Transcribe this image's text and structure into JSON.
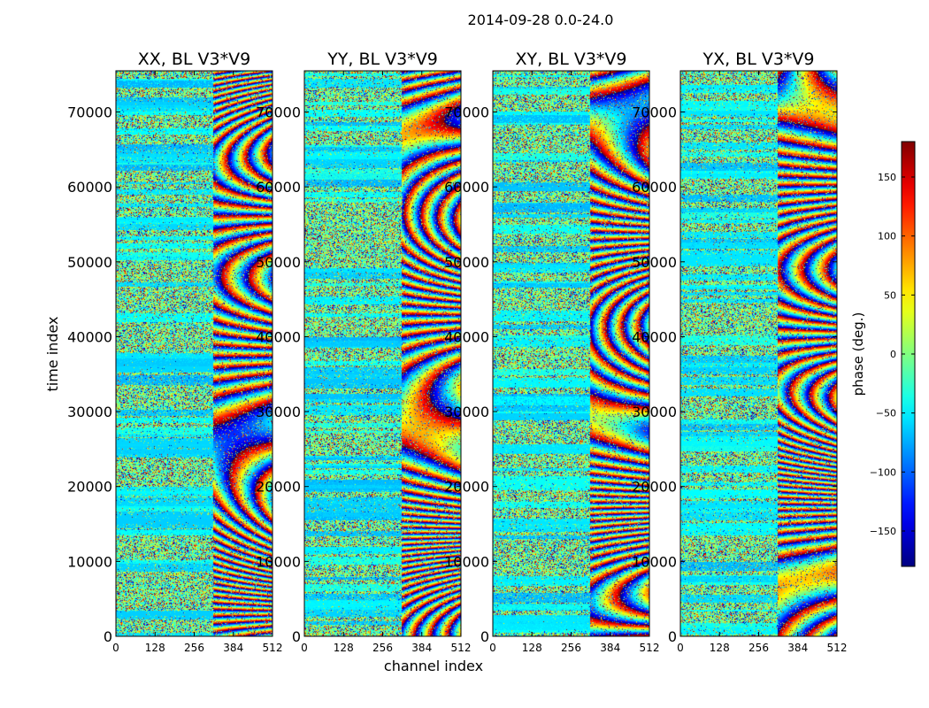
{
  "chart_data": {
    "type": "heatmap",
    "title": "2014-09-28 0.0-24.0",
    "xlabel": "channel index",
    "ylabel": "time index",
    "xlim": [
      0,
      512
    ],
    "ylim": [
      0,
      75500
    ],
    "xticks": [
      0,
      128,
      256,
      384,
      512
    ],
    "yticks": [
      0,
      10000,
      20000,
      30000,
      40000,
      50000,
      60000,
      70000
    ],
    "colorbar": {
      "label": "phase (deg.)",
      "range": [
        -180,
        180
      ],
      "ticks": [
        -150,
        -100,
        -50,
        0,
        50,
        100,
        150
      ],
      "tick_labels": [
        "−150",
        "−100",
        "−50",
        "0",
        "50",
        "100",
        "150"
      ],
      "colormap": "jet"
    },
    "panels": [
      {
        "title": "XX, BL V3*V9",
        "polarization": "XX",
        "baseline": "V3*V9"
      },
      {
        "title": "YY, BL V3*V9",
        "polarization": "YY",
        "baseline": "V3*V9"
      },
      {
        "title": "XY, BL V3*V9",
        "polarization": "XY",
        "baseline": "V3*V9"
      },
      {
        "title": "YX, BL V3*V9",
        "polarization": "YX",
        "baseline": "V3*V9"
      }
    ]
  }
}
